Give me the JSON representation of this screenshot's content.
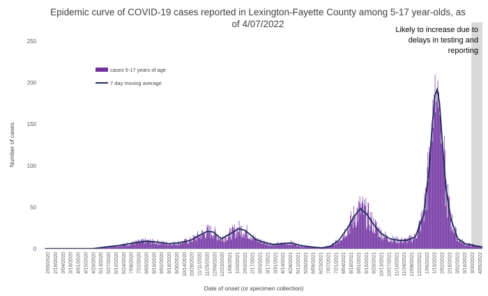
{
  "chart_data": {
    "type": "bar",
    "title_lines": [
      "Epidemic curve of COVID-19 cases reported in Lexington-Fayette County among 5-17 year-olds, as",
      "of 4/07/2022"
    ],
    "xlabel": "Date of onset (or specimen collection)",
    "ylabel": "Number of cases",
    "ylim": [
      0,
      250
    ],
    "yticks": [
      "0",
      "50",
      "100",
      "150",
      "200",
      "250"
    ],
    "start_date": "2020-02-05",
    "end_date": "2022-04-05",
    "x_tick_labels": [
      "2/05/2020",
      "2/19/2020",
      "3/04/2020",
      "3/18/2020",
      "4/01/2020",
      "4/15/2020",
      "4/29/2020",
      "5/13/2020",
      "5/27/2020",
      "6/10/2020",
      "6/24/2020",
      "7/08/2020",
      "7/22/2020",
      "8/05/2020",
      "8/19/2020",
      "9/02/2020",
      "9/16/2020",
      "9/30/2020",
      "10/14/2020",
      "10/28/2020",
      "11/11/2020",
      "11/25/2020",
      "12/09/2020",
      "12/23/2020",
      "1/06/2021",
      "1/20/2021",
      "2/03/2021",
      "2/17/2021",
      "3/03/2021",
      "3/17/2021",
      "3/31/2021",
      "4/14/2021",
      "4/28/2021",
      "5/12/2021",
      "5/26/2021",
      "6/09/2021",
      "6/23/2021",
      "7/07/2021",
      "7/21/2021",
      "8/04/2021",
      "8/18/2021",
      "9/01/2021",
      "9/15/2021",
      "9/29/2021",
      "10/13/2021",
      "10/27/2021",
      "11/10/2021",
      "11/24/2021",
      "12/08/2021",
      "12/22/2021",
      "1/05/2022",
      "1/19/2022",
      "2/02/2022",
      "2/16/2022",
      "3/02/2022",
      "3/16/2022",
      "3/30/2022",
      "4/05/2022"
    ],
    "series": [
      {
        "name": "cases 5-17 years of age",
        "color": "#7030a0",
        "kind": "bar"
      },
      {
        "name": "7 day moving average",
        "color": "#1f2a5c",
        "kind": "line"
      }
    ],
    "moving_average_points": [
      {
        "date": "2020-02-05",
        "y": 0
      },
      {
        "date": "2020-03-15",
        "y": 0
      },
      {
        "date": "2020-05-01",
        "y": 0
      },
      {
        "date": "2020-05-25",
        "y": 2
      },
      {
        "date": "2020-06-20",
        "y": 4
      },
      {
        "date": "2020-07-15",
        "y": 7
      },
      {
        "date": "2020-08-05",
        "y": 9
      },
      {
        "date": "2020-08-25",
        "y": 8
      },
      {
        "date": "2020-09-15",
        "y": 6
      },
      {
        "date": "2020-10-05",
        "y": 7
      },
      {
        "date": "2020-10-25",
        "y": 10
      },
      {
        "date": "2020-11-10",
        "y": 16
      },
      {
        "date": "2020-11-25",
        "y": 21
      },
      {
        "date": "2020-12-05",
        "y": 20
      },
      {
        "date": "2020-12-20",
        "y": 12
      },
      {
        "date": "2021-01-05",
        "y": 18
      },
      {
        "date": "2021-01-20",
        "y": 24
      },
      {
        "date": "2021-02-01",
        "y": 22
      },
      {
        "date": "2021-02-20",
        "y": 11
      },
      {
        "date": "2021-03-10",
        "y": 7
      },
      {
        "date": "2021-03-25",
        "y": 5
      },
      {
        "date": "2021-04-10",
        "y": 6
      },
      {
        "date": "2021-04-25",
        "y": 7
      },
      {
        "date": "2021-05-10",
        "y": 4
      },
      {
        "date": "2021-06-01",
        "y": 2
      },
      {
        "date": "2021-06-20",
        "y": 1
      },
      {
        "date": "2021-07-05",
        "y": 3
      },
      {
        "date": "2021-07-20",
        "y": 10
      },
      {
        "date": "2021-08-05",
        "y": 25
      },
      {
        "date": "2021-08-18",
        "y": 40
      },
      {
        "date": "2021-08-28",
        "y": 48
      },
      {
        "date": "2021-09-08",
        "y": 42
      },
      {
        "date": "2021-09-20",
        "y": 30
      },
      {
        "date": "2021-10-05",
        "y": 18
      },
      {
        "date": "2021-10-20",
        "y": 12
      },
      {
        "date": "2021-11-05",
        "y": 10
      },
      {
        "date": "2021-11-20",
        "y": 10
      },
      {
        "date": "2021-12-05",
        "y": 14
      },
      {
        "date": "2021-12-20",
        "y": 40
      },
      {
        "date": "2021-12-30",
        "y": 95
      },
      {
        "date": "2022-01-05",
        "y": 150
      },
      {
        "date": "2022-01-10",
        "y": 185
      },
      {
        "date": "2022-01-14",
        "y": 192
      },
      {
        "date": "2022-01-18",
        "y": 175
      },
      {
        "date": "2022-01-24",
        "y": 120
      },
      {
        "date": "2022-01-30",
        "y": 70
      },
      {
        "date": "2022-02-08",
        "y": 35
      },
      {
        "date": "2022-02-20",
        "y": 12
      },
      {
        "date": "2022-03-05",
        "y": 6
      },
      {
        "date": "2022-03-20",
        "y": 4
      },
      {
        "date": "2022-04-05",
        "y": 2
      }
    ],
    "legend_position": "upper-left",
    "annotation": {
      "lines": [
        "Likely to increase due to",
        "delays in testing and",
        "reporting"
      ],
      "shaded_from": "2022-03-17",
      "shaded_to": "2022-04-05",
      "shade_color": "#d9d9d9"
    },
    "grid": false
  }
}
